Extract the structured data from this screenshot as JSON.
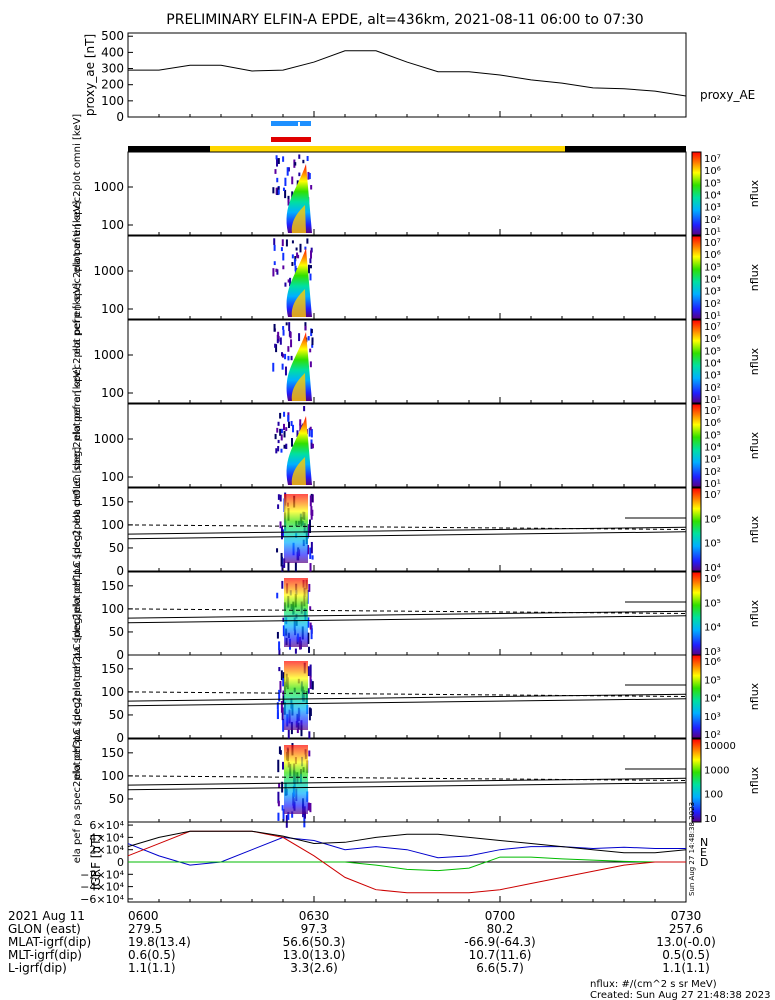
{
  "title": "PRELIMINARY ELFIN-A EPDE, alt=436km, 2021-08-11 06:00 to 07:30",
  "time_ticks": [
    "0600",
    "0630",
    "0700",
    "0730"
  ],
  "footer": {
    "rows": [
      {
        "label": "2021 Aug 11",
        "values": [
          "0600",
          "0630",
          "0700",
          "0730"
        ]
      },
      {
        "label": "GLON (east)",
        "values": [
          "279.5",
          "97.3",
          "80.2",
          "257.6"
        ]
      },
      {
        "label": "MLAT-igrf(dip)",
        "values": [
          "19.8(13.4)",
          "56.6(50.3)",
          "-66.9(-64.3)",
          "13.0(-0.0)"
        ]
      },
      {
        "label": "MLT-igrf(dip)",
        "values": [
          "0.6(0.5)",
          "13.0(13.0)",
          "10.7(11.6)",
          "0.5(0.5)"
        ]
      },
      {
        "label": "L-igrf(dip)",
        "values": [
          "1.1(1.1)",
          "3.3(2.6)",
          "6.6(5.7)",
          "1.1(1.1)"
        ]
      }
    ],
    "units_note": "nflux: #/(cm^2 s sr MeV)",
    "created": "Created: Sun Aug 27 21:48:38 2023"
  },
  "side_stamp": "Sun Aug 27 14:48:38 2023",
  "chart_data": [
    {
      "type": "line",
      "ylabel": "proxy_ae [nT]",
      "legend": "proxy_AE",
      "yticks": [
        "0",
        "100",
        "200",
        "300",
        "400",
        "500"
      ],
      "ylim": [
        0,
        520
      ],
      "series": [
        {
          "name": "proxy_AE",
          "color": "#000000",
          "x": [
            0,
            5,
            10,
            15,
            20,
            25,
            30,
            35,
            40,
            45,
            50,
            55,
            60,
            65,
            70,
            75,
            80,
            85,
            90
          ],
          "values": [
            290,
            290,
            320,
            320,
            285,
            290,
            340,
            410,
            410,
            340,
            280,
            280,
            260,
            230,
            210,
            180,
            175,
            160,
            130
          ]
        }
      ]
    },
    {
      "type": "line",
      "ylabel": "IGRF [nT]",
      "yticks": [
        "6×10⁴",
        "4×10⁴",
        "2×10⁴",
        "0",
        "−2×10⁴",
        "−4×10⁴",
        "−6×10⁴"
      ],
      "ylim": [
        -65000,
        65000
      ],
      "legend_letters": [
        "N",
        "E",
        "D"
      ],
      "series": [
        {
          "name": "N",
          "color": "#0000cc",
          "x": [
            0,
            5,
            10,
            15,
            20,
            25,
            30,
            35,
            40,
            45,
            50,
            55,
            60,
            65,
            70,
            75,
            80,
            85,
            90
          ],
          "values": [
            30000,
            10000,
            -5000,
            0,
            20000,
            40000,
            35000,
            20000,
            25000,
            20000,
            7000,
            10000,
            20000,
            25000,
            25000,
            22000,
            24000,
            22000,
            22000
          ]
        },
        {
          "name": "E",
          "color": "#00bb00",
          "x": [
            0,
            5,
            10,
            15,
            20,
            25,
            30,
            35,
            40,
            45,
            50,
            55,
            60,
            65,
            70,
            75,
            80,
            85,
            90
          ],
          "values": [
            0,
            0,
            0,
            0,
            0,
            0,
            0,
            0,
            -5000,
            -12000,
            -14000,
            -10000,
            8000,
            8000,
            5000,
            3000,
            1000,
            0,
            0
          ]
        },
        {
          "name": "D",
          "color": "#cc0000",
          "x": [
            0,
            5,
            10,
            15,
            20,
            25,
            30,
            35,
            40,
            45,
            50,
            55,
            60,
            65,
            70,
            75,
            80,
            85,
            90
          ],
          "values": [
            10000,
            30000,
            50000,
            50000,
            50000,
            40000,
            10000,
            -25000,
            -45000,
            -50000,
            -50000,
            -50000,
            -45000,
            -35000,
            -25000,
            -15000,
            -5000,
            0,
            0
          ]
        },
        {
          "name": "total",
          "color": "#000000",
          "x": [
            0,
            5,
            10,
            15,
            20,
            25,
            30,
            35,
            40,
            45,
            50,
            55,
            60,
            65,
            70,
            75,
            80,
            85,
            90
          ],
          "values": [
            25000,
            40000,
            50000,
            50000,
            50000,
            42000,
            30000,
            32000,
            40000,
            45000,
            45000,
            40000,
            35000,
            30000,
            25000,
            20000,
            15000,
            15000,
            20000
          ]
        }
      ]
    }
  ],
  "panels": [
    {
      "ylabel": "ela pef en spec2plot omni [keV]",
      "kind": "energy",
      "yticks": [
        "1000",
        "100"
      ],
      "cbar_ticks": [
        "10⁷",
        "10⁶",
        "10⁵",
        "10⁴",
        "10³",
        "10²",
        "10¹"
      ],
      "cbar_label": "nflux"
    },
    {
      "ylabel": "ela pef en spec2plot anti [keV]",
      "kind": "energy",
      "yticks": [
        "1000",
        "100"
      ],
      "cbar_ticks": [
        "10⁷",
        "10⁶",
        "10⁵",
        "10⁴",
        "10³",
        "10²",
        "10¹"
      ],
      "cbar_label": "nflux"
    },
    {
      "ylabel": "ela pef en spec2plot perp [keV]",
      "kind": "energy",
      "yticks": [
        "1000",
        "100"
      ],
      "cbar_ticks": [
        "10⁷",
        "10⁶",
        "10⁵",
        "10⁴",
        "10³",
        "10²",
        "10¹"
      ],
      "cbar_label": "nflux"
    },
    {
      "ylabel": "ela pef en spec2plot para [keV]",
      "kind": "energy",
      "yticks": [
        "1000",
        "100"
      ],
      "cbar_ticks": [
        "10⁷",
        "10⁶",
        "10⁵",
        "10⁴",
        "10³",
        "10²",
        "10¹"
      ],
      "cbar_label": "nflux"
    },
    {
      "ylabel": "ela pef pa spec2plot ch0LC [deg]",
      "kind": "pa",
      "yticks": [
        "150",
        "100",
        "50",
        "0"
      ],
      "cbar_ticks": [
        "10⁷",
        "10⁶",
        "10⁵",
        "10⁴"
      ],
      "cbar_label": "nflux"
    },
    {
      "ylabel": "ela pef pa spec2plot ch1LC [deg]",
      "kind": "pa",
      "yticks": [
        "150",
        "100",
        "50",
        "0"
      ],
      "cbar_ticks": [
        "10⁶",
        "10⁵",
        "10⁴",
        "10³"
      ],
      "cbar_label": "nflux"
    },
    {
      "ylabel": "ela pef pa spec2plot ch2LC [deg]",
      "kind": "pa",
      "yticks": [
        "150",
        "100",
        "50",
        "0"
      ],
      "cbar_ticks": [
        "10⁶",
        "10⁵",
        "10⁴",
        "10³",
        "10²"
      ],
      "cbar_label": "nflux"
    },
    {
      "ylabel": "ela pef pa spec2plot ch3LC [deg]",
      "kind": "pa",
      "yticks": [
        "150",
        "100",
        "50"
      ],
      "cbar_ticks": [
        "10000",
        "1000",
        "100",
        "10"
      ],
      "cbar_label": "nflux"
    }
  ]
}
